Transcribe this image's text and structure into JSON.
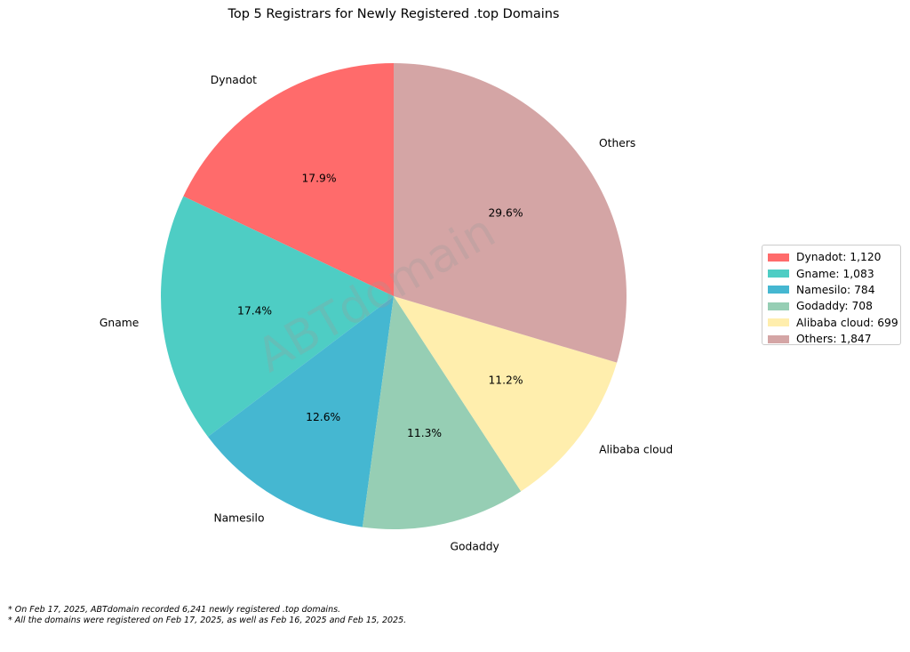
{
  "chart_data": {
    "type": "pie",
    "title": "Top 5 Registrars for Newly Registered .top Domains",
    "watermark": "ABTdomain",
    "slices": [
      {
        "label": "Dynadot",
        "value": 1120,
        "pct": "17.9%",
        "legend": "Dynadot: 1,120",
        "color": "#ff6b6b"
      },
      {
        "label": "Gname",
        "value": 1083,
        "pct": "17.4%",
        "legend": "Gname: 1,083",
        "color": "#4ecdc4"
      },
      {
        "label": "Namesilo",
        "value": 784,
        "pct": "12.6%",
        "legend": "Namesilo: 784",
        "color": "#45b7d1"
      },
      {
        "label": "Godaddy",
        "value": 708,
        "pct": "11.3%",
        "legend": "Godaddy: 708",
        "color": "#96ceb4"
      },
      {
        "label": "Alibaba cloud",
        "value": 699,
        "pct": "11.2%",
        "legend": "Alibaba cloud: 699",
        "color": "#ffeead"
      },
      {
        "label": "Others",
        "value": 1847,
        "pct": "29.6%",
        "legend": "Others: 1,847",
        "color": "#d4a5a5"
      }
    ],
    "start_angle_deg": 90,
    "direction": "counterclockwise",
    "legend_position": "right"
  },
  "footnotes": [
    "* On Feb 17, 2025, ABTdomain recorded 6,241 newly registered .top domains.",
    "* All the domains were registered on Feb 17, 2025, as well as Feb 16, 2025 and Feb 15, 2025."
  ]
}
